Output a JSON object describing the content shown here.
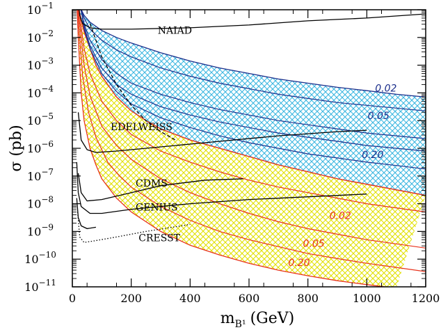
{
  "chart_data": {
    "type": "line",
    "title": "",
    "xlabel": "m",
    "xlabel_sub": "B¹",
    "xlabel_unit": "(GeV)",
    "ylabel": "σ (pb)",
    "xlim": [
      0,
      1200
    ],
    "ylim_exp": [
      -11,
      -1
    ],
    "y_scale": "log",
    "x_ticks": [
      0,
      200,
      400,
      600,
      800,
      1000,
      1200
    ],
    "y_ticks": [
      {
        "base": "10",
        "exp": "−1",
        "value": -1
      },
      {
        "base": "10",
        "exp": "−2",
        "value": -2
      },
      {
        "base": "10",
        "exp": "−3",
        "value": -3
      },
      {
        "base": "10",
        "exp": "−4",
        "value": -4
      },
      {
        "base": "10",
        "exp": "−5",
        "value": -5
      },
      {
        "base": "10",
        "exp": "−6",
        "value": -6
      },
      {
        "base": "10",
        "exp": "−7",
        "value": -7
      },
      {
        "base": "10",
        "exp": "−8",
        "value": -8
      },
      {
        "base": "10",
        "exp": "−9",
        "value": -9
      },
      {
        "base": "10",
        "exp": "−10",
        "value": -10
      },
      {
        "base": "10",
        "exp": "−11",
        "value": -11
      }
    ],
    "colors": {
      "blue_band": "#3ab6e0",
      "blue_line": "#1c2f8c",
      "yellow_band": "#e2e000",
      "red_line": "#e8321c",
      "limit_line": "#000000"
    },
    "bands": [
      {
        "id": "blue",
        "upper": [
          [
            10,
            -0.6
          ],
          [
            20,
            -0.8
          ],
          [
            40,
            -1.2
          ],
          [
            60,
            -1.45
          ],
          [
            100,
            -1.75
          ],
          [
            150,
            -2.0
          ],
          [
            200,
            -2.2
          ],
          [
            300,
            -2.55
          ],
          [
            400,
            -2.85
          ],
          [
            500,
            -3.1
          ],
          [
            600,
            -3.3
          ],
          [
            700,
            -3.5
          ],
          [
            800,
            -3.65
          ],
          [
            900,
            -3.8
          ],
          [
            1000,
            -3.92
          ],
          [
            1100,
            -4.05
          ],
          [
            1200,
            -4.15
          ]
        ],
        "lower": [
          [
            10,
            -0.6
          ],
          [
            20,
            -0.9
          ],
          [
            40,
            -1.8
          ],
          [
            60,
            -2.4
          ],
          [
            80,
            -3.0
          ],
          [
            100,
            -3.4
          ],
          [
            150,
            -4.15
          ],
          [
            200,
            -4.65
          ],
          [
            250,
            -5.0
          ],
          [
            300,
            -5.3
          ],
          [
            400,
            -5.7
          ],
          [
            500,
            -6.0
          ],
          [
            600,
            -6.3
          ],
          [
            700,
            -6.6
          ],
          [
            800,
            -6.85
          ],
          [
            900,
            -7.1
          ],
          [
            1000,
            -7.3
          ],
          [
            1100,
            -7.5
          ],
          [
            1200,
            -7.7
          ]
        ]
      },
      {
        "id": "yellow",
        "upper": [
          [
            10,
            -0.6
          ],
          [
            20,
            -0.9
          ],
          [
            40,
            -1.8
          ],
          [
            60,
            -2.4
          ],
          [
            80,
            -3.0
          ],
          [
            100,
            -3.4
          ],
          [
            150,
            -4.15
          ],
          [
            200,
            -4.65
          ],
          [
            250,
            -5.0
          ],
          [
            300,
            -5.3
          ],
          [
            400,
            -5.7
          ],
          [
            500,
            -6.0
          ],
          [
            600,
            -6.3
          ],
          [
            700,
            -6.6
          ],
          [
            800,
            -6.85
          ],
          [
            900,
            -7.1
          ],
          [
            1000,
            -7.3
          ],
          [
            1100,
            -7.5
          ],
          [
            1200,
            -7.7
          ]
        ],
        "lower": [
          [
            15,
            -0.6
          ],
          [
            20,
            -2.0
          ],
          [
            30,
            -4.0
          ],
          [
            40,
            -5.0
          ],
          [
            60,
            -6.0
          ],
          [
            80,
            -6.6
          ],
          [
            100,
            -7.1
          ],
          [
            150,
            -7.8
          ],
          [
            200,
            -8.3
          ],
          [
            300,
            -9.0
          ],
          [
            400,
            -9.5
          ],
          [
            500,
            -9.85
          ],
          [
            600,
            -10.15
          ],
          [
            700,
            -10.4
          ],
          [
            800,
            -10.6
          ],
          [
            900,
            -10.78
          ],
          [
            1000,
            -10.92
          ],
          [
            1100,
            -11.05
          ]
        ]
      }
    ],
    "series": [
      {
        "label": "",
        "band": "blue",
        "points": [
          [
            20,
            -0.6
          ],
          [
            40,
            -1.3
          ],
          [
            60,
            -1.7
          ],
          [
            100,
            -2.1
          ],
          [
            150,
            -2.45
          ],
          [
            200,
            -2.7
          ],
          [
            300,
            -3.1
          ],
          [
            400,
            -3.4
          ],
          [
            500,
            -3.65
          ],
          [
            600,
            -3.85
          ],
          [
            700,
            -4.05
          ],
          [
            800,
            -4.2
          ],
          [
            900,
            -4.35
          ],
          [
            1000,
            -4.45
          ],
          [
            1100,
            -4.55
          ],
          [
            1200,
            -4.65
          ]
        ]
      },
      {
        "label": "",
        "band": "blue",
        "points": [
          [
            20,
            -0.6
          ],
          [
            40,
            -1.5
          ],
          [
            60,
            -2.1
          ],
          [
            100,
            -2.8
          ],
          [
            150,
            -3.3
          ],
          [
            200,
            -3.65
          ],
          [
            300,
            -4.05
          ],
          [
            400,
            -4.35
          ],
          [
            500,
            -4.6
          ],
          [
            600,
            -4.8
          ],
          [
            700,
            -5.0
          ],
          [
            800,
            -5.15
          ],
          [
            900,
            -5.3
          ],
          [
            1000,
            -5.45
          ],
          [
            1100,
            -5.55
          ],
          [
            1200,
            -5.65
          ]
        ]
      },
      {
        "label": "0.02",
        "band": "blue",
        "points": [
          [
            25,
            -0.6
          ],
          [
            40,
            -1.6
          ],
          [
            60,
            -2.3
          ],
          [
            100,
            -3.1
          ],
          [
            150,
            -3.7
          ],
          [
            200,
            -4.05
          ],
          [
            300,
            -4.5
          ],
          [
            400,
            -4.8
          ],
          [
            500,
            -5.05
          ],
          [
            600,
            -5.25
          ],
          [
            700,
            -5.45
          ],
          [
            800,
            -5.6
          ],
          [
            900,
            -5.75
          ],
          [
            1000,
            -5.9
          ],
          [
            1100,
            -6.0
          ],
          [
            1200,
            -6.1
          ]
        ]
      },
      {
        "label": "0.05",
        "band": "blue",
        "points": [
          [
            25,
            -0.6
          ],
          [
            40,
            -1.7
          ],
          [
            60,
            -2.4
          ],
          [
            100,
            -3.3
          ],
          [
            150,
            -3.95
          ],
          [
            200,
            -4.4
          ],
          [
            300,
            -4.9
          ],
          [
            400,
            -5.25
          ],
          [
            500,
            -5.55
          ],
          [
            600,
            -5.8
          ],
          [
            700,
            -6.0
          ],
          [
            800,
            -6.2
          ],
          [
            900,
            -6.35
          ],
          [
            1000,
            -6.5
          ],
          [
            1100,
            -6.62
          ],
          [
            1200,
            -6.75
          ]
        ]
      },
      {
        "label": "0.20",
        "band": "yellow",
        "points": [
          [
            15,
            -0.6
          ],
          [
            25,
            -1.2
          ],
          [
            40,
            -2.4
          ],
          [
            60,
            -3.3
          ],
          [
            100,
            -4.3
          ],
          [
            150,
            -5.0
          ],
          [
            200,
            -5.5
          ],
          [
            300,
            -6.1
          ],
          [
            400,
            -6.5
          ],
          [
            500,
            -6.85
          ],
          [
            600,
            -7.15
          ],
          [
            700,
            -7.4
          ],
          [
            800,
            -7.6
          ],
          [
            900,
            -7.8
          ],
          [
            1000,
            -8.0
          ],
          [
            1100,
            -8.15
          ],
          [
            1200,
            -8.3
          ]
        ]
      },
      {
        "label": "",
        "band": "yellow",
        "points": [
          [
            15,
            -0.6
          ],
          [
            25,
            -1.5
          ],
          [
            40,
            -3.0
          ],
          [
            60,
            -4.1
          ],
          [
            100,
            -5.2
          ],
          [
            150,
            -5.9
          ],
          [
            200,
            -6.4
          ],
          [
            300,
            -7.1
          ],
          [
            400,
            -7.6
          ],
          [
            500,
            -8.0
          ],
          [
            600,
            -8.35
          ],
          [
            700,
            -8.65
          ],
          [
            800,
            -8.9
          ],
          [
            900,
            -9.1
          ],
          [
            1000,
            -9.3
          ],
          [
            1100,
            -9.45
          ],
          [
            1200,
            -9.6
          ]
        ]
      },
      {
        "label": "",
        "band": "yellow",
        "points": [
          [
            15,
            -0.6
          ],
          [
            22,
            -1.6
          ],
          [
            35,
            -3.4
          ],
          [
            55,
            -4.7
          ],
          [
            80,
            -5.6
          ],
          [
            120,
            -6.5
          ],
          [
            160,
            -7.0
          ],
          [
            200,
            -7.4
          ],
          [
            300,
            -8.1
          ],
          [
            400,
            -8.6
          ],
          [
            500,
            -9.0
          ],
          [
            600,
            -9.3
          ],
          [
            700,
            -9.55
          ],
          [
            800,
            -9.8
          ],
          [
            900,
            -9.98
          ],
          [
            1000,
            -10.15
          ],
          [
            1100,
            -10.3
          ],
          [
            1200,
            -10.45
          ]
        ]
      }
    ],
    "limits": [
      {
        "label": "NAIAD",
        "style": "solid",
        "label_at": [
          290,
          -1.87
        ],
        "points": [
          [
            20,
            -0.6
          ],
          [
            25,
            -1.2
          ],
          [
            35,
            -1.5
          ],
          [
            60,
            -1.65
          ],
          [
            100,
            -1.7
          ],
          [
            200,
            -1.7
          ],
          [
            400,
            -1.65
          ],
          [
            600,
            -1.55
          ],
          [
            800,
            -1.4
          ],
          [
            1000,
            -1.3
          ],
          [
            1200,
            -1.15
          ]
        ]
      },
      {
        "label": "EDELWEISS",
        "style": "solid",
        "label_at": [
          130,
          -5.35
        ],
        "points": [
          [
            20,
            -4.7
          ],
          [
            30,
            -5.7
          ],
          [
            50,
            -6.05
          ],
          [
            80,
            -6.15
          ],
          [
            150,
            -6.1
          ],
          [
            300,
            -5.95
          ],
          [
            500,
            -5.75
          ],
          [
            700,
            -5.55
          ],
          [
            900,
            -5.4
          ],
          [
            1000,
            -5.35
          ]
        ]
      },
      {
        "label": "CDMS",
        "style": "solid",
        "label_at": [
          215,
          -7.38
        ],
        "points": [
          [
            20,
            -6.9
          ],
          [
            30,
            -7.6
          ],
          [
            50,
            -7.9
          ],
          [
            100,
            -7.85
          ],
          [
            200,
            -7.6
          ],
          [
            300,
            -7.35
          ],
          [
            450,
            -7.15
          ],
          [
            580,
            -7.1
          ]
        ]
      },
      {
        "label": "GENIUS",
        "style": "solid",
        "label_at": [
          215,
          -8.25
        ],
        "points": [
          [
            15,
            -6.5
          ],
          [
            20,
            -7.6
          ],
          [
            30,
            -8.1
          ],
          [
            60,
            -8.35
          ],
          [
            100,
            -8.35
          ],
          [
            200,
            -8.2
          ],
          [
            400,
            -8.0
          ],
          [
            600,
            -7.85
          ],
          [
            800,
            -7.75
          ],
          [
            1000,
            -7.65
          ]
        ]
      },
      {
        "label": "CRESST",
        "style": "dotted",
        "label_at": [
          225,
          -9.35
        ],
        "points": [
          [
            18,
            -8.3
          ],
          [
            25,
            -9.2
          ],
          [
            40,
            -9.4
          ],
          [
            70,
            -9.35
          ],
          [
            150,
            -9.2
          ],
          [
            250,
            -9.0
          ],
          [
            400,
            -8.75
          ]
        ]
      },
      {
        "label": "",
        "style": "solid",
        "points": [
          [
            15,
            -7.8
          ],
          [
            20,
            -8.5
          ],
          [
            30,
            -8.8
          ],
          [
            50,
            -8.9
          ],
          [
            80,
            -8.85
          ]
        ]
      },
      {
        "label": "",
        "style": "dashed",
        "points": [
          [
            60,
            -1.5
          ],
          [
            100,
            -2.7
          ],
          [
            150,
            -3.7
          ],
          [
            200,
            -4.45
          ],
          [
            250,
            -5.0
          ],
          [
            300,
            -5.4
          ],
          [
            350,
            -5.7
          ]
        ]
      }
    ],
    "band_labels": [
      {
        "label": "0.02",
        "band": "blue",
        "at": [
          1065,
          -3.95
        ]
      },
      {
        "label": "0.05",
        "band": "blue",
        "at": [
          1040,
          -4.95
        ]
      },
      {
        "label": "0.20",
        "band": "blue",
        "at": [
          1020,
          -6.35
        ]
      },
      {
        "label": "0.02",
        "band": "yellow",
        "at": [
          910,
          -8.55
        ]
      },
      {
        "label": "0.05",
        "band": "yellow",
        "at": [
          820,
          -9.55
        ]
      },
      {
        "label": "0.20",
        "band": "yellow",
        "at": [
          770,
          -10.25
        ]
      }
    ],
    "grid": false,
    "legend": "none"
  }
}
